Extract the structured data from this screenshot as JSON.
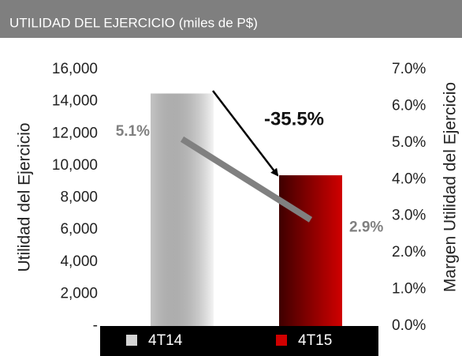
{
  "chart_data": {
    "type": "bar",
    "title": "UTILIDAD DEL EJERCICIO (miles de P$)",
    "ylabel": "Utilidad del Ejercicio",
    "y2label": "Margen Utilidad del Ejercicio",
    "categories": [
      "4T14",
      "4T15"
    ],
    "series": [
      {
        "values": [
          14500,
          9400
        ],
        "colors": [
          "#d4d4d4",
          "#d00000"
        ]
      },
      {
        "type": "line",
        "axis": "y2",
        "color": "#808080",
        "values": [
          5.1,
          2.9
        ],
        "value_labels": [
          "5.1%",
          "2.9%"
        ]
      }
    ],
    "annotation": "-35.5%",
    "ylim": [
      0,
      16000
    ],
    "yticks": [
      {
        "value": 0,
        "label": "-"
      },
      {
        "value": 2000,
        "label": "2,000"
      },
      {
        "value": 4000,
        "label": "4,000"
      },
      {
        "value": 6000,
        "label": "6,000"
      },
      {
        "value": 8000,
        "label": "8,000"
      },
      {
        "value": 10000,
        "label": "10,000"
      },
      {
        "value": 12000,
        "label": "12,000"
      },
      {
        "value": 14000,
        "label": "14,000"
      },
      {
        "value": 16000,
        "label": "16,000"
      }
    ],
    "y2lim": [
      0,
      7
    ],
    "y2ticks": [
      {
        "value": 0,
        "label": "0.0%"
      },
      {
        "value": 1,
        "label": "1.0%"
      },
      {
        "value": 2,
        "label": "2.0%"
      },
      {
        "value": 3,
        "label": "3.0%"
      },
      {
        "value": 4,
        "label": "4.0%"
      },
      {
        "value": 5,
        "label": "5.0%"
      },
      {
        "value": 6,
        "label": "6.0%"
      },
      {
        "value": 7,
        "label": "7.0%"
      }
    ]
  }
}
